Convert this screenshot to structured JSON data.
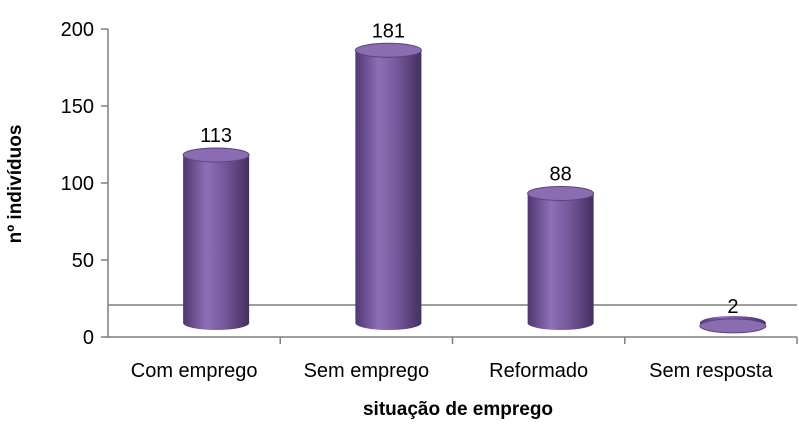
{
  "chart_data": {
    "type": "bar",
    "style": "3d-cylinder",
    "categories": [
      "Com emprego",
      "Sem emprego",
      "Reformado",
      "Sem resposta"
    ],
    "values": [
      113,
      181,
      88,
      2
    ],
    "data_labels": [
      "113",
      "181",
      "88",
      "2"
    ],
    "yticks": [
      0,
      50,
      100,
      150,
      200
    ],
    "ylim": [
      0,
      200
    ],
    "xlabel": "situação de emprego",
    "ylabel": "nº indivíduos",
    "grid": false,
    "legend": "none",
    "colors": {
      "bar_body": "#7a5a9e",
      "bar_top": "#8a6cb0",
      "axis": "#7f7f7f"
    }
  }
}
